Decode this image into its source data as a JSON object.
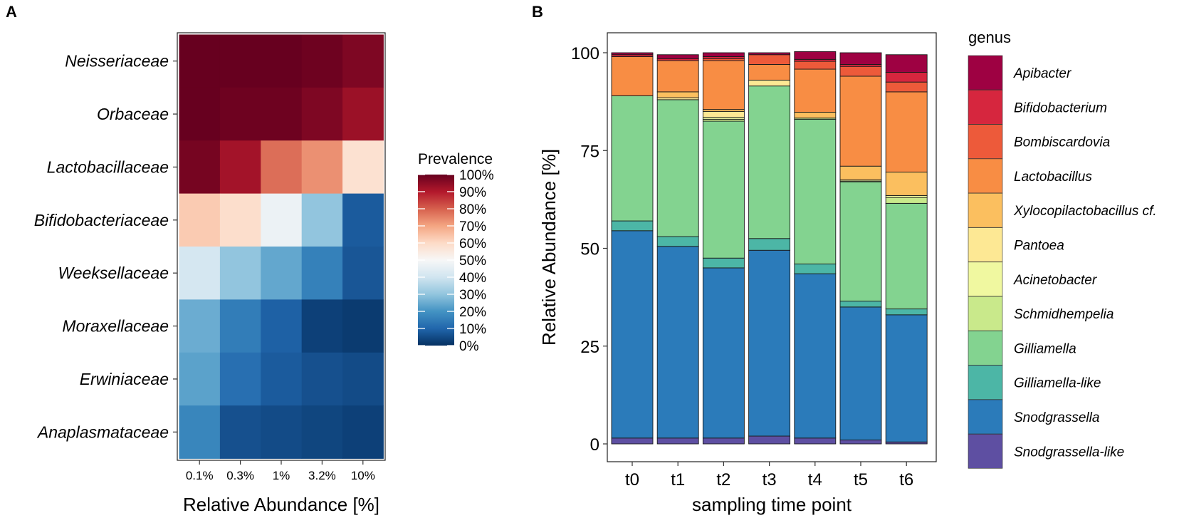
{
  "chart_data": [
    {
      "type": "heatmap",
      "panel_label": "A",
      "title": "",
      "xlabel": "Relative Abundance [%]",
      "ylabel": "",
      "x_categories": [
        "0.1%",
        "0.3%",
        "1%",
        "3.2%",
        "10%"
      ],
      "y_categories": [
        "Neisseriaceae",
        "Orbaceae",
        "Lactobacillaceae",
        "Bifidobacteriaceae",
        "Weeksellaceae",
        "Moraxellaceae",
        "Erwiniaceae",
        "Anaplasmataceae"
      ],
      "values": [
        [
          100,
          100,
          100,
          99,
          97
        ],
        [
          100,
          99,
          99,
          97,
          93
        ],
        [
          98,
          92,
          78,
          73,
          58
        ],
        [
          63,
          59,
          47,
          30,
          8
        ],
        [
          41,
          30,
          24,
          16,
          7
        ],
        [
          25,
          15,
          9,
          3,
          2
        ],
        [
          23,
          12,
          8,
          6,
          5
        ],
        [
          17,
          6,
          5,
          4,
          3
        ]
      ],
      "colorbar": {
        "title": "Prevalence",
        "ticks": [
          "100%",
          "90%",
          "80%",
          "70%",
          "60%",
          "50%",
          "40%",
          "30%",
          "20%",
          "10%",
          "0%"
        ],
        "range": [
          0,
          100
        ],
        "colors": [
          "#053061",
          "#2166ac",
          "#4393c3",
          "#92c5de",
          "#d1e5f0",
          "#f7f7f7",
          "#fddbc7",
          "#f4a582",
          "#d6604d",
          "#b2182b",
          "#67001f"
        ]
      }
    },
    {
      "type": "bar",
      "stacked": true,
      "panel_label": "B",
      "title": "",
      "xlabel": "sampling time point",
      "ylabel": "Relative Abundance [%]",
      "ylim": [
        0,
        100
      ],
      "yticks": [
        "0",
        "25",
        "50",
        "75",
        "100"
      ],
      "categories": [
        "t0",
        "t1",
        "t2",
        "t3",
        "t4",
        "t5",
        "t6"
      ],
      "legend_title": "genus",
      "legend_position": "right",
      "series": [
        {
          "name": "Snodgrassella-like",
          "color": "#5e4fa2",
          "values": [
            1.5,
            1.5,
            1.5,
            2,
            1.5,
            1,
            0.5
          ]
        },
        {
          "name": "Snodgrassella",
          "color": "#2b7bba",
          "values": [
            53,
            49,
            43.5,
            47.5,
            42,
            34,
            32.5
          ]
        },
        {
          "name": "Gilliamella-like",
          "color": "#4cb6a6",
          "values": [
            2.5,
            2.5,
            2.5,
            3,
            2.5,
            1.5,
            1.5
          ]
        },
        {
          "name": "Gilliamella",
          "color": "#83d390",
          "values": [
            32,
            35,
            35,
            39,
            37,
            30.5,
            27
          ]
        },
        {
          "name": "Schmidhempelia",
          "color": "#c9e98b",
          "values": [
            0,
            0,
            0.5,
            0,
            0.3,
            0.2,
            1.5
          ]
        },
        {
          "name": "Acinetobacter",
          "color": "#f0f8a0",
          "values": [
            0,
            0,
            0.5,
            0,
            0,
            0.3,
            0.5
          ]
        },
        {
          "name": "Pantoea",
          "color": "#fde894",
          "values": [
            0,
            0.5,
            1.5,
            1.5,
            0,
            0,
            0
          ]
        },
        {
          "name": "Xylocopilactobacillus cf.",
          "color": "#fbbf5f",
          "values": [
            0,
            1.5,
            0.5,
            0,
            1.5,
            3.5,
            6
          ]
        },
        {
          "name": "Lactobacillus",
          "color": "#f88d44",
          "values": [
            10,
            8,
            12.5,
            4,
            11,
            23,
            20.5
          ]
        },
        {
          "name": "Bombiscardovia",
          "color": "#ed5a3a",
          "values": [
            0,
            0,
            0.5,
            2.5,
            2,
            2.5,
            2.5
          ]
        },
        {
          "name": "Bifidobacterium",
          "color": "#d6263e",
          "values": [
            0.5,
            0.5,
            0.5,
            0,
            0.5,
            0.5,
            2.5
          ]
        },
        {
          "name": "Apibacter",
          "color": "#9e0142",
          "values": [
            0.5,
            1,
            1,
            0.5,
            2,
            3,
            4.5
          ]
        }
      ],
      "legend_entries": [
        "Apibacter",
        "Bifidobacterium",
        "Bombiscardovia",
        "Lactobacillus",
        "Xylocopilactobacillus cf.",
        "Pantoea",
        "Acinetobacter",
        "Schmidhempelia",
        "Gilliamella",
        "Gilliamella-like",
        "Snodgrassella",
        "Snodgrassella-like"
      ]
    }
  ]
}
